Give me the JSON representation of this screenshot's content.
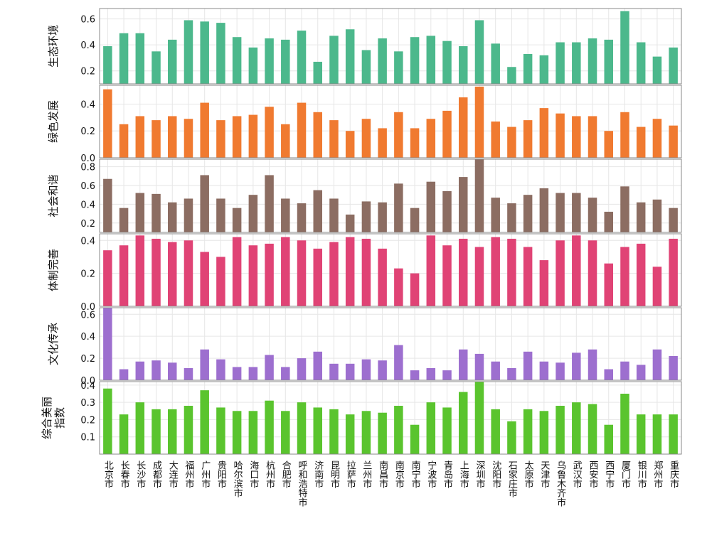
{
  "chart_data": {
    "type": "bar",
    "layout": "stacked-panels",
    "grid": true,
    "categories": [
      "北京市",
      "长春市",
      "长沙市",
      "成都市",
      "大连市",
      "福州市",
      "广州市",
      "贵阳市",
      "哈尔滨市",
      "海口市",
      "杭州市",
      "合肥市",
      "呼和浩特市",
      "济南市",
      "昆明市",
      "拉萨市",
      "兰州市",
      "南昌市",
      "南京市",
      "南宁市",
      "宁波市",
      "青岛市",
      "上海市",
      "深圳市",
      "沈阳市",
      "石家庄市",
      "太原市",
      "天津市",
      "乌鲁木齐市",
      "武汉市",
      "西安市",
      "西宁市",
      "厦门市",
      "银川市",
      "郑州市",
      "重庆市"
    ],
    "panels": [
      {
        "ylabel": "生态环境",
        "color": "#4cb88c",
        "ylim": [
          0.1,
          0.68
        ],
        "yticks": [
          "0.2",
          "0.4",
          "0.6"
        ],
        "values": [
          0.39,
          0.49,
          0.49,
          0.35,
          0.44,
          0.59,
          0.58,
          0.57,
          0.46,
          0.38,
          0.45,
          0.44,
          0.51,
          0.27,
          0.47,
          0.52,
          0.36,
          0.45,
          0.35,
          0.46,
          0.47,
          0.43,
          0.39,
          0.59,
          0.41,
          0.23,
          0.33,
          0.32,
          0.42,
          0.42,
          0.45,
          0.44,
          0.66,
          0.42,
          0.31,
          0.38
        ]
      },
      {
        "ylabel": "绿色发展",
        "color": "#f07a30",
        "ylim": [
          0.0,
          0.54
        ],
        "yticks": [
          "0.0",
          "0.2",
          "0.4"
        ],
        "values": [
          0.51,
          0.25,
          0.31,
          0.28,
          0.31,
          0.29,
          0.41,
          0.28,
          0.31,
          0.32,
          0.38,
          0.25,
          0.41,
          0.34,
          0.28,
          0.2,
          0.29,
          0.22,
          0.34,
          0.22,
          0.29,
          0.35,
          0.45,
          0.53,
          0.27,
          0.23,
          0.28,
          0.37,
          0.33,
          0.31,
          0.31,
          0.2,
          0.34,
          0.23,
          0.29,
          0.24
        ]
      },
      {
        "ylabel": "社会和谐",
        "color": "#8c6d62",
        "ylim": [
          0.1,
          0.88
        ],
        "yticks": [
          "0.2",
          "0.4",
          "0.6",
          "0.8"
        ],
        "values": [
          0.67,
          0.36,
          0.52,
          0.51,
          0.42,
          0.46,
          0.71,
          0.46,
          0.36,
          0.5,
          0.71,
          0.46,
          0.41,
          0.55,
          0.46,
          0.29,
          0.43,
          0.42,
          0.62,
          0.36,
          0.64,
          0.54,
          0.69,
          0.88,
          0.47,
          0.41,
          0.5,
          0.57,
          0.52,
          0.52,
          0.47,
          0.32,
          0.59,
          0.42,
          0.45,
          0.36
        ]
      },
      {
        "ylabel": "体制完善",
        "color": "#e04375",
        "ylim": [
          0.0,
          0.44
        ],
        "yticks": [
          "0.0",
          "0.2",
          "0.4"
        ],
        "values": [
          0.34,
          0.37,
          0.43,
          0.41,
          0.39,
          0.4,
          0.33,
          0.3,
          0.42,
          0.37,
          0.38,
          0.42,
          0.4,
          0.35,
          0.39,
          0.42,
          0.41,
          0.35,
          0.23,
          0.2,
          0.43,
          0.37,
          0.41,
          0.36,
          0.42,
          0.41,
          0.36,
          0.28,
          0.4,
          0.43,
          0.4,
          0.26,
          0.36,
          0.38,
          0.24,
          0.41
        ]
      },
      {
        "ylabel": "文化传承",
        "color": "#9d6fcf",
        "ylim": [
          0.0,
          0.66
        ],
        "yticks": [
          "0.0",
          "0.2",
          "0.4",
          "0.6"
        ],
        "values": [
          0.66,
          0.1,
          0.17,
          0.18,
          0.16,
          0.11,
          0.28,
          0.19,
          0.12,
          0.12,
          0.23,
          0.12,
          0.2,
          0.26,
          0.15,
          0.15,
          0.19,
          0.18,
          0.32,
          0.09,
          0.11,
          0.09,
          0.28,
          0.24,
          0.17,
          0.11,
          0.26,
          0.17,
          0.16,
          0.25,
          0.28,
          0.1,
          0.17,
          0.14,
          0.28,
          0.22
        ]
      },
      {
        "ylabel": "综合美丽\n指数",
        "color": "#5ac42e",
        "ylim": [
          0.0,
          0.42
        ],
        "yticks": [
          "0.1",
          "0.2",
          "0.3",
          "0.4"
        ],
        "values": [
          0.38,
          0.23,
          0.3,
          0.26,
          0.26,
          0.28,
          0.37,
          0.27,
          0.25,
          0.25,
          0.31,
          0.25,
          0.3,
          0.27,
          0.26,
          0.23,
          0.25,
          0.24,
          0.28,
          0.17,
          0.3,
          0.27,
          0.36,
          0.42,
          0.26,
          0.19,
          0.26,
          0.25,
          0.28,
          0.3,
          0.29,
          0.17,
          0.35,
          0.23,
          0.23,
          0.23
        ]
      }
    ]
  }
}
